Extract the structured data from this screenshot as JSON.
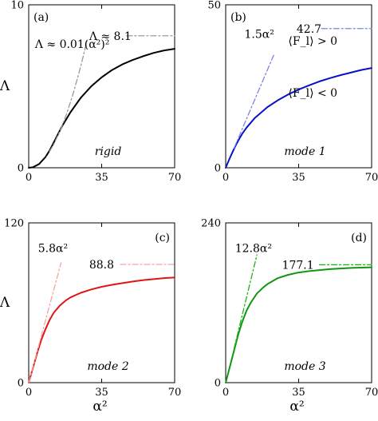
{
  "chart_data": [
    {
      "type": "line",
      "panel_label": "(a)",
      "inside_label": "rigid",
      "ylabel": "Λ",
      "xlabel": "",
      "xlim": [
        0,
        70
      ],
      "ylim": [
        0,
        10
      ],
      "xticks": [
        "0",
        "35",
        "70"
      ],
      "yticks": [
        "0",
        "10"
      ],
      "main_color": "#000000",
      "asym_color": "#999999",
      "series": [
        {
          "values": [
            [
              0,
              0
            ],
            [
              2,
              0.03
            ],
            [
              5,
              0.23
            ],
            [
              8,
              0.65
            ],
            [
              10,
              1.05
            ],
            [
              13,
              1.8
            ],
            [
              16,
              2.55
            ],
            [
              20,
              3.4
            ],
            [
              25,
              4.3
            ],
            [
              30,
              5.0
            ],
            [
              35,
              5.55
            ],
            [
              40,
              6.0
            ],
            [
              45,
              6.35
            ],
            [
              50,
              6.62
            ],
            [
              55,
              6.85
            ],
            [
              60,
              7.05
            ],
            [
              65,
              7.2
            ],
            [
              70,
              7.3
            ]
          ]
        },
        {
          "values": [
            [
              10,
              1.0
            ],
            [
              12,
              1.44
            ],
            [
              15,
              2.25
            ],
            [
              18,
              3.24
            ],
            [
              21,
              4.41
            ],
            [
              24,
              5.76
            ],
            [
              26,
              6.76
            ],
            [
              28,
              7.84
            ]
          ]
        },
        {
          "values": [
            [
              47,
              8.1
            ],
            [
              70,
              8.1
            ]
          ]
        }
      ],
      "annotations": [
        {
          "text": "Λ ≈ 8.1",
          "x": 29,
          "y": 8.1
        },
        {
          "text": "Λ ≈ 0.01(α²)²",
          "x": 3,
          "y": 7.6
        }
      ]
    },
    {
      "type": "line",
      "panel_label": "(b)",
      "inside_label": "mode 1",
      "ylabel": "",
      "xlabel": "",
      "xlim": [
        0,
        70
      ],
      "ylim": [
        0,
        50
      ],
      "xticks": [
        "0",
        "35",
        "70"
      ],
      "yticks": [
        "0",
        "50"
      ],
      "main_color": "#0a10c8",
      "asym_color": "#7a85e0",
      "series": [
        {
          "values": [
            [
              0,
              0
            ],
            [
              1,
              1.5
            ],
            [
              2,
              3.0
            ],
            [
              3,
              4.4
            ],
            [
              4,
              5.8
            ],
            [
              5,
              7.1
            ],
            [
              6,
              8.3
            ],
            [
              8,
              10.5
            ],
            [
              10,
              12.3
            ],
            [
              14,
              15.3
            ],
            [
              20,
              18.6
            ],
            [
              25,
              20.7
            ],
            [
              30,
              22.5
            ],
            [
              35,
              24.0
            ],
            [
              40,
              25.3
            ],
            [
              45,
              26.5
            ],
            [
              50,
              27.5
            ],
            [
              55,
              28.4
            ],
            [
              60,
              29.2
            ],
            [
              65,
              30.0
            ],
            [
              70,
              30.6
            ]
          ]
        },
        {
          "values": [
            [
              4,
              6.0
            ],
            [
              6,
              9.0
            ],
            [
              9,
              13.5
            ],
            [
              12,
              18.0
            ],
            [
              15,
              22.5
            ],
            [
              18,
              27.0
            ],
            [
              20,
              30.0
            ],
            [
              22,
              33.0
            ],
            [
              23,
              34.5
            ]
          ]
        },
        {
          "values": [
            [
              46,
              42.7
            ],
            [
              70,
              42.7
            ]
          ]
        }
      ],
      "annotations": [
        {
          "text": "42.7",
          "x": 34,
          "y": 42.7
        },
        {
          "text": "1.5α²",
          "x": 9,
          "y": 41
        },
        {
          "text": "⟨F_l⟩ > 0",
          "x": 30,
          "y": 39
        },
        {
          "text": "⟨F_l⟩ < 0",
          "x": 30,
          "y": 23
        }
      ]
    },
    {
      "type": "line",
      "panel_label": "(c)",
      "inside_label": "mode 2",
      "ylabel": "Λ",
      "xlabel": "α²",
      "xlim": [
        0,
        70
      ],
      "ylim": [
        0,
        120
      ],
      "xticks": [
        "0",
        "35",
        "70"
      ],
      "yticks": [
        "0",
        "120"
      ],
      "main_color": "#e01515",
      "asym_color": "#f5a3a3",
      "series": [
        {
          "values": [
            [
              0,
              0
            ],
            [
              2,
              11
            ],
            [
              4,
              22
            ],
            [
              6,
              32
            ],
            [
              8,
              40
            ],
            [
              10,
              47
            ],
            [
              12,
              52.5
            ],
            [
              15,
              58
            ],
            [
              18,
              62
            ],
            [
              20,
              64
            ],
            [
              25,
              67.5
            ],
            [
              30,
              70
            ],
            [
              35,
              72
            ],
            [
              40,
              73.5
            ],
            [
              45,
              74.8
            ],
            [
              50,
              76
            ],
            [
              55,
              77
            ],
            [
              60,
              77.8
            ],
            [
              65,
              78.5
            ],
            [
              70,
              79
            ]
          ]
        },
        {
          "values": [
            [
              0,
              0
            ],
            [
              4,
              23.2
            ],
            [
              8,
              46.4
            ],
            [
              10,
              58
            ],
            [
              12,
              69.6
            ],
            [
              14,
              81.2
            ],
            [
              15.5,
              89.9
            ]
          ]
        },
        {
          "values": [
            [
              44,
              88.8
            ],
            [
              70,
              88.8
            ]
          ]
        }
      ],
      "annotations": [
        {
          "text": "5.8α²",
          "x": 4.5,
          "y": 101
        },
        {
          "text": "88.8",
          "x": 29,
          "y": 88.8
        }
      ]
    },
    {
      "type": "line",
      "panel_label": "(d)",
      "inside_label": "mode 3",
      "ylabel": "",
      "xlabel": "α²",
      "xlim": [
        0,
        70
      ],
      "ylim": [
        0,
        240
      ],
      "xticks": [
        "0",
        "35",
        "70"
      ],
      "yticks": [
        "0",
        "240"
      ],
      "main_color": "#129612",
      "asym_color": "#1eb41e",
      "series": [
        {
          "values": [
            [
              0,
              0
            ],
            [
              2,
              24
            ],
            [
              4,
              48
            ],
            [
              6,
              72
            ],
            [
              8,
              92
            ],
            [
              10,
              108
            ],
            [
              12,
              120
            ],
            [
              15,
              134
            ],
            [
              18,
              143
            ],
            [
              20,
              148
            ],
            [
              25,
              157
            ],
            [
              30,
              162
            ],
            [
              35,
              165.5
            ],
            [
              40,
              167.5
            ],
            [
              45,
              169
            ],
            [
              50,
              170.5
            ],
            [
              55,
              171.5
            ],
            [
              60,
              172.3
            ],
            [
              65,
              172.8
            ],
            [
              70,
              173.2
            ]
          ]
        },
        {
          "values": [
            [
              4,
              51.2
            ],
            [
              6,
              76.8
            ],
            [
              8,
              102.4
            ],
            [
              10,
              128
            ],
            [
              12,
              153.6
            ],
            [
              14,
              179.2
            ],
            [
              15,
              192
            ]
          ]
        },
        {
          "values": [
            [
              45,
              177.1
            ],
            [
              70,
              177.1
            ]
          ]
        }
      ],
      "annotations": [
        {
          "text": "12.8α²",
          "x": 4.5,
          "y": 202
        },
        {
          "text": "177.1",
          "x": 27,
          "y": 177.1
        }
      ]
    }
  ]
}
